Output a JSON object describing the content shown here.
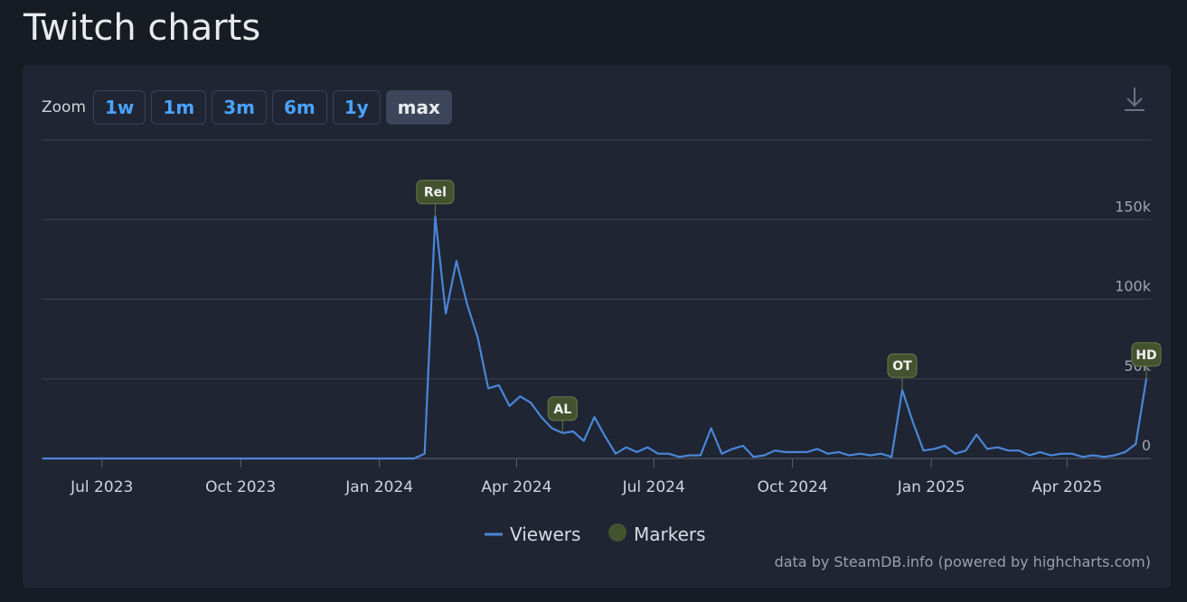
{
  "page_title": "Twitch charts",
  "zoom": {
    "label": "Zoom",
    "buttons": [
      "1w",
      "1m",
      "3m",
      "6m",
      "1y",
      "max"
    ],
    "selected": "max"
  },
  "credit": "data by SteamDB.info (powered by highcharts.com)",
  "chart_data": {
    "type": "line",
    "xlim": [
      "2023-05",
      "2025-06"
    ],
    "xticks": [
      {
        "value": "2023-07",
        "label": "Jul 2023"
      },
      {
        "value": "2023-10",
        "label": "Oct 2023"
      },
      {
        "value": "2024-01",
        "label": "Jan 2024"
      },
      {
        "value": "2024-04",
        "label": "Apr 2024"
      },
      {
        "value": "2024-07",
        "label": "Jul 2024"
      },
      {
        "value": "2024-10",
        "label": "Oct 2024"
      },
      {
        "value": "2025-01",
        "label": "Jan 2025"
      },
      {
        "value": "2025-04",
        "label": "Apr 2025"
      }
    ],
    "ylim": [
      0,
      200000
    ],
    "yticks": [
      0,
      {
        "value": 50000,
        "label": "50k"
      },
      {
        "value": 100000,
        "label": "100k"
      },
      {
        "value": 150000,
        "label": "150k"
      }
    ],
    "grid": true,
    "series": [
      {
        "name": "Viewers",
        "color": "#4a86d8",
        "values": [
          0,
          0,
          0,
          0,
          0,
          0,
          0,
          0,
          0,
          0,
          0,
          0,
          0,
          0,
          0,
          0,
          0,
          0,
          0,
          0,
          0,
          0,
          0,
          0,
          0,
          0,
          0,
          0,
          0,
          0,
          0,
          0,
          0,
          0,
          0,
          0,
          3000,
          152000,
          91000,
          124000,
          97000,
          76000,
          44000,
          46000,
          33000,
          39000,
          35000,
          26000,
          19000,
          16000,
          17000,
          11000,
          26000,
          14000,
          3000,
          7000,
          4000,
          7000,
          3000,
          3000,
          1000,
          2000,
          2000,
          19000,
          3000,
          6000,
          8000,
          1000,
          2000,
          5000,
          4000,
          4000,
          4000,
          6000,
          3000,
          4000,
          2000,
          3000,
          2000,
          3000,
          1000,
          43000,
          23000,
          5000,
          6000,
          8000,
          3000,
          5000,
          15000,
          6000,
          7000,
          5000,
          5000,
          2000,
          4000,
          2000,
          3000,
          3000,
          1000,
          2000,
          1000,
          2000,
          4000,
          9000,
          50000
        ]
      }
    ],
    "markers_name": "Markers",
    "markers_color": "#44532f",
    "markers": [
      {
        "label": "Rel",
        "point": 37
      },
      {
        "label": "AL",
        "point": 49
      },
      {
        "label": "OT",
        "point": 81
      },
      {
        "label": "HD",
        "point": 104
      }
    ]
  }
}
